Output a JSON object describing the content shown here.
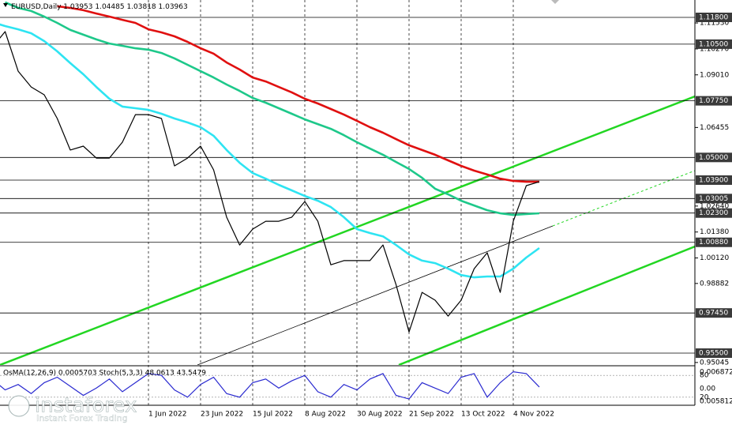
{
  "chart_data": {
    "type": "line",
    "title": "EURUSD,Daily",
    "ohlc_text": "1.03953 1.04485 1.03818 1.03963",
    "categories": [
      null,
      null,
      null,
      null,
      null,
      null,
      null,
      null,
      null,
      null,
      null,
      null,
      "1 Jun 2022",
      null,
      null,
      null,
      "23 Jun 2022",
      null,
      null,
      null,
      "15 Jul 2022",
      null,
      null,
      null,
      "8 Aug 2022",
      null,
      null,
      null,
      "30 Aug 2022",
      null,
      null,
      null,
      "21 Sep 2022",
      null,
      null,
      null,
      "13 Oct 2022",
      null,
      null,
      null,
      "4 Nov 2022",
      null,
      null
    ],
    "series": [
      {
        "color": "#e01010",
        "values": [
          null,
          null,
          null,
          null,
          null,
          1.1234,
          1.1226,
          1.1215,
          1.1199,
          1.1184,
          1.1168,
          1.1153,
          1.1122,
          1.1107,
          1.1088,
          1.1061,
          1.103,
          1.1004,
          1.0961,
          1.0927,
          1.0888,
          1.0869,
          1.0842,
          1.0816,
          1.0785,
          1.0762,
          1.0735,
          1.0708,
          1.0678,
          1.0647,
          1.062,
          1.0589,
          1.0559,
          1.0536,
          1.0513,
          1.0486,
          1.0459,
          1.0436,
          1.0417,
          1.0397,
          1.0386,
          1.0382,
          1.0382
        ]
      },
      {
        "color": "#1ec88a",
        "values": [
          null,
          1.1253,
          1.1226,
          1.1211,
          1.1184,
          1.1153,
          1.1119,
          1.1096,
          1.1073,
          1.1053,
          1.1042,
          1.103,
          1.1023,
          1.1007,
          1.0981,
          1.095,
          1.0919,
          1.0888,
          1.0854,
          1.0823,
          1.0789,
          1.0766,
          1.0739,
          1.0712,
          1.0685,
          1.0662,
          1.0639,
          1.0608,
          1.0574,
          1.0543,
          1.0513,
          1.0478,
          1.0444,
          1.0401,
          1.0348,
          1.0321,
          1.029,
          1.0267,
          1.0244,
          1.0229,
          1.0221,
          1.0225,
          1.0229
        ]
      },
      {
        "color": "#2ee4f2",
        "values": [
          1.1157,
          1.1138,
          1.1122,
          1.1103,
          1.1065,
          1.1015,
          1.0958,
          1.0904,
          1.0842,
          1.0785,
          1.0747,
          1.0739,
          1.0731,
          1.0712,
          1.0689,
          1.067,
          1.0647,
          1.0605,
          1.0536,
          1.0474,
          1.0424,
          1.0397,
          1.0367,
          1.034,
          1.0313,
          1.029,
          1.0259,
          1.021,
          1.0152,
          1.0133,
          1.0117,
          1.0075,
          1.0029,
          0.9999,
          0.9987,
          0.996,
          0.9929,
          0.9918,
          0.9922,
          0.9922,
          0.996,
          1.0014,
          1.006
        ]
      },
      {
        "color": "#000000",
        "values": [
          1.1034,
          1.1111,
          1.0919,
          1.0842,
          1.0804,
          1.0689,
          1.0536,
          1.0555,
          1.0497,
          1.0497,
          1.0574,
          1.0708,
          1.0708,
          1.0689,
          1.0459,
          1.0497,
          1.0555,
          1.044,
          1.021,
          1.0075,
          1.0152,
          1.019,
          1.019,
          1.021,
          1.0286,
          1.019,
          0.9979,
          0.9999,
          0.9999,
          0.9999,
          1.0075,
          0.9883,
          0.9653,
          0.9845,
          0.9807,
          0.973,
          0.9807,
          0.996,
          1.0037,
          0.9845,
          1.019,
          1.0363,
          1.0382
        ]
      }
    ],
    "ylim": [
      0.94925,
      1.12644
    ],
    "yticks": [
      {
        "value": 1.1153,
        "label": "1.11530"
      },
      {
        "value": 1.1027,
        "label": "1.10270"
      },
      {
        "value": 1.0901,
        "label": "1.09010"
      },
      {
        "value": 1.06455,
        "label": "1.06455"
      },
      {
        "value": 1.0264,
        "label": "1.02640"
      },
      {
        "value": 1.0138,
        "label": "1.01380"
      },
      {
        "value": 1.0012,
        "label": "1.00120"
      },
      {
        "value": 0.98882,
        "label": "0.98882"
      },
      {
        "value": 0.95045,
        "label": "0.95045"
      }
    ],
    "levels": [
      {
        "value": 1.118,
        "label": "1.11800"
      },
      {
        "value": 1.105,
        "label": "1.10500"
      },
      {
        "value": 1.0775,
        "label": "1.07750"
      },
      {
        "value": 1.05,
        "label": "1.05000"
      },
      {
        "value": 1.039,
        "label": "1.03900"
      },
      {
        "value": 1.03005,
        "label": "1.03005"
      },
      {
        "value": 1.023,
        "label": "1.02300"
      },
      {
        "value": 1.0088,
        "label": "1.00880"
      },
      {
        "value": 0.9745,
        "label": "0.97450"
      },
      {
        "value": 0.955,
        "label": "0.95500"
      }
    ],
    "indicator": {
      "title": "OsMA(12,26,9) 0.0005703 Stoch(5,3,3) 48.0613 43.5479",
      "ylim": [
        0,
        100
      ],
      "yticks": [
        80,
        20
      ],
      "axis_labels": [
        "0.0068723",
        "0.00",
        "0.0058129"
      ],
      "series": [
        {
          "color": "#2a2ad0",
          "values": [
            70,
            40,
            55,
            30,
            60,
            75,
            50,
            25,
            45,
            70,
            35,
            60,
            85,
            80,
            40,
            20,
            55,
            75,
            30,
            20,
            60,
            70,
            45,
            65,
            80,
            35,
            20,
            55,
            40,
            70,
            85,
            25,
            15,
            60,
            45,
            30,
            75,
            85,
            20,
            60,
            90,
            85,
            48
          ]
        }
      ]
    }
  },
  "watermark": {
    "brand": "instaforex",
    "tagline": "Instant Forex Trading"
  }
}
